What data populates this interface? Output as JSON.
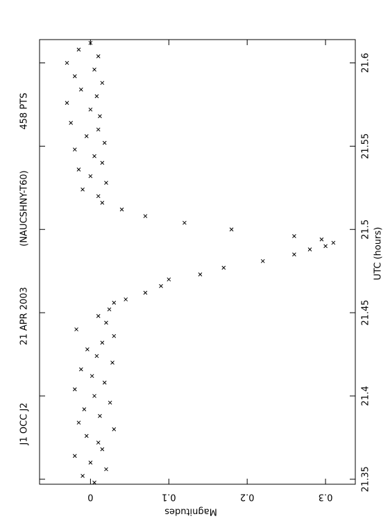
{
  "chart_data": {
    "type": "scatter",
    "title_parts": [
      "J1 OCC J2",
      "21 APR 2003",
      "(NAUCSHNY-T60)",
      "458 PTS"
    ],
    "x_label": "UTC (hours)",
    "y_label": "Magnitudes",
    "x": [
      21.348,
      21.352,
      21.356,
      21.36,
      21.364,
      21.368,
      21.372,
      21.376,
      21.38,
      21.384,
      21.388,
      21.392,
      21.396,
      21.4,
      21.404,
      21.408,
      21.412,
      21.416,
      21.42,
      21.424,
      21.428,
      21.432,
      21.436,
      21.44,
      21.444,
      21.448,
      21.452,
      21.456,
      21.458,
      21.462,
      21.466,
      21.47,
      21.473,
      21.477,
      21.481,
      21.485,
      21.488,
      21.49,
      21.492,
      21.494,
      21.496,
      21.5,
      21.504,
      21.508,
      21.512,
      21.516,
      21.52,
      21.524,
      21.528,
      21.532,
      21.536,
      21.54,
      21.544,
      21.548,
      21.552,
      21.556,
      21.56,
      21.564,
      21.568,
      21.572,
      21.576,
      21.58,
      21.584,
      21.588,
      21.592,
      21.596,
      21.6,
      21.604,
      21.608,
      21.612
    ],
    "values": [
      0.005,
      -0.01,
      0.02,
      0.0,
      -0.02,
      0.015,
      0.01,
      -0.005,
      0.03,
      -0.015,
      0.012,
      -0.008,
      0.025,
      0.005,
      -0.02,
      0.018,
      0.002,
      -0.012,
      0.028,
      0.008,
      -0.004,
      0.015,
      0.03,
      -0.018,
      0.02,
      0.01,
      0.024,
      0.03,
      0.045,
      0.07,
      0.09,
      0.1,
      0.14,
      0.17,
      0.22,
      0.26,
      0.28,
      0.3,
      0.31,
      0.295,
      0.26,
      0.18,
      0.12,
      0.07,
      0.04,
      0.015,
      0.01,
      -0.01,
      0.02,
      0.0,
      -0.015,
      0.015,
      0.005,
      -0.02,
      0.018,
      -0.005,
      0.01,
      -0.025,
      0.012,
      0.0,
      -0.03,
      0.008,
      -0.012,
      0.015,
      -0.02,
      0.005,
      -0.03,
      0.01,
      -0.015,
      0.0
    ],
    "color": "#000000",
    "xlim": [
      21.347,
      21.614
    ],
    "xticks": [
      21.35,
      21.4,
      21.45,
      21.5,
      21.55,
      21.6
    ],
    "ylim": [
      -0.065,
      0.338
    ],
    "yticks": [
      0,
      0.1,
      0.2,
      0.3
    ]
  }
}
